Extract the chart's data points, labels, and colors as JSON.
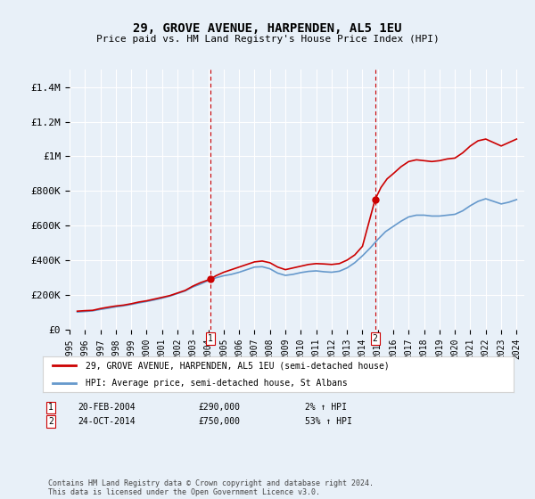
{
  "title": "29, GROVE AVENUE, HARPENDEN, AL5 1EU",
  "subtitle": "Price paid vs. HM Land Registry's House Price Index (HPI)",
  "background_color": "#e8f0f8",
  "plot_bg_color": "#e8f0f8",
  "ylim": [
    0,
    1500000
  ],
  "yticks": [
    0,
    200000,
    400000,
    600000,
    800000,
    1000000,
    1200000,
    1400000
  ],
  "ytick_labels": [
    "£0",
    "£200K",
    "£400K",
    "£600K",
    "£800K",
    "£1M",
    "£1.2M",
    "£1.4M"
  ],
  "x_start_year": 1995,
  "x_end_year": 2024,
  "red_line_color": "#cc0000",
  "blue_line_color": "#6699cc",
  "marker_color": "#cc0000",
  "vline_color": "#cc0000",
  "annotation1_year": 2004.13,
  "annotation1_value": 290000,
  "annotation2_year": 2014.82,
  "annotation2_value": 750000,
  "legend_label_red": "29, GROVE AVENUE, HARPENDEN, AL5 1EU (semi-detached house)",
  "legend_label_blue": "HPI: Average price, semi-detached house, St Albans",
  "note1_num": "1",
  "note1_date": "20-FEB-2004",
  "note1_price": "£290,000",
  "note1_change": "2% ↑ HPI",
  "note2_num": "2",
  "note2_date": "24-OCT-2014",
  "note2_price": "£750,000",
  "note2_change": "53% ↑ HPI",
  "footer": "Contains HM Land Registry data © Crown copyright and database right 2024.\nThis data is licensed under the Open Government Licence v3.0.",
  "red_x": [
    1995.5,
    1996.0,
    1996.5,
    1997.0,
    1997.5,
    1998.0,
    1998.5,
    1999.0,
    1999.5,
    2000.0,
    2000.5,
    2001.0,
    2001.5,
    2002.0,
    2002.5,
    2003.0,
    2003.5,
    2004.13,
    2004.5,
    2005.0,
    2005.5,
    2006.0,
    2006.5,
    2007.0,
    2007.5,
    2008.0,
    2008.5,
    2009.0,
    2009.5,
    2010.0,
    2010.5,
    2011.0,
    2011.5,
    2012.0,
    2012.5,
    2013.0,
    2013.5,
    2014.0,
    2014.82,
    2015.2,
    2015.6,
    2016.0,
    2016.5,
    2017.0,
    2017.5,
    2018.0,
    2018.5,
    2019.0,
    2019.5,
    2020.0,
    2020.5,
    2021.0,
    2021.5,
    2022.0,
    2022.5,
    2023.0,
    2023.5,
    2024.0
  ],
  "red_y": [
    105000,
    108000,
    110000,
    120000,
    128000,
    135000,
    140000,
    148000,
    158000,
    165000,
    175000,
    185000,
    195000,
    210000,
    225000,
    250000,
    270000,
    290000,
    310000,
    330000,
    345000,
    360000,
    375000,
    390000,
    395000,
    385000,
    360000,
    345000,
    355000,
    365000,
    375000,
    380000,
    378000,
    375000,
    380000,
    400000,
    430000,
    480000,
    750000,
    820000,
    870000,
    900000,
    940000,
    970000,
    980000,
    975000,
    970000,
    975000,
    985000,
    990000,
    1020000,
    1060000,
    1090000,
    1100000,
    1080000,
    1060000,
    1080000,
    1100000
  ],
  "blue_x": [
    1995.5,
    1996.0,
    1996.5,
    1997.0,
    1997.5,
    1998.0,
    1998.5,
    1999.0,
    1999.5,
    2000.0,
    2000.5,
    2001.0,
    2001.5,
    2002.0,
    2002.5,
    2003.0,
    2003.5,
    2004.0,
    2004.5,
    2005.0,
    2005.5,
    2006.0,
    2006.5,
    2007.0,
    2007.5,
    2008.0,
    2008.5,
    2009.0,
    2009.5,
    2010.0,
    2010.5,
    2011.0,
    2011.5,
    2012.0,
    2012.5,
    2013.0,
    2013.5,
    2014.0,
    2014.5,
    2015.0,
    2015.5,
    2016.0,
    2016.5,
    2017.0,
    2017.5,
    2018.0,
    2018.5,
    2019.0,
    2019.5,
    2020.0,
    2020.5,
    2021.0,
    2021.5,
    2022.0,
    2022.5,
    2023.0,
    2023.5,
    2024.0
  ],
  "blue_y": [
    100000,
    103000,
    107000,
    115000,
    122000,
    130000,
    136000,
    144000,
    153000,
    161000,
    170000,
    180000,
    192000,
    207000,
    222000,
    245000,
    262000,
    282000,
    298000,
    310000,
    318000,
    330000,
    345000,
    360000,
    362000,
    350000,
    325000,
    312000,
    318000,
    328000,
    335000,
    338000,
    333000,
    330000,
    336000,
    355000,
    385000,
    425000,
    470000,
    520000,
    565000,
    595000,
    625000,
    650000,
    660000,
    660000,
    655000,
    655000,
    660000,
    665000,
    685000,
    715000,
    740000,
    755000,
    740000,
    725000,
    735000,
    750000
  ]
}
